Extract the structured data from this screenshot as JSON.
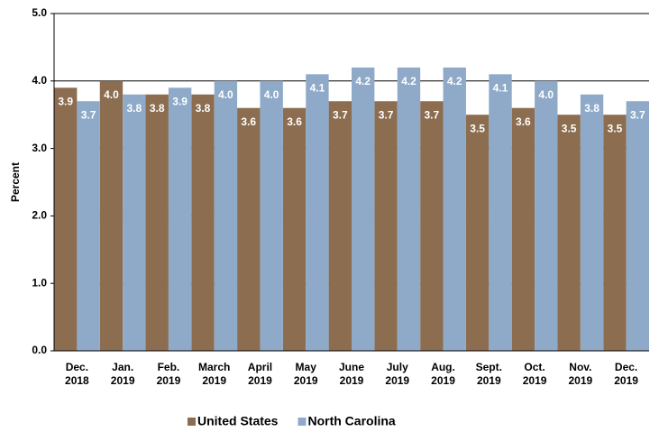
{
  "chart_data": {
    "type": "bar",
    "y_label": "Percent",
    "categories": [
      [
        "Dec.",
        "2018"
      ],
      [
        "Jan.",
        "2019"
      ],
      [
        "Feb.",
        "2019"
      ],
      [
        "March",
        "2019"
      ],
      [
        "April",
        "2019"
      ],
      [
        "May",
        "2019"
      ],
      [
        "June",
        "2019"
      ],
      [
        "July",
        "2019"
      ],
      [
        "Aug.",
        "2019"
      ],
      [
        "Sept.",
        "2019"
      ],
      [
        "Oct.",
        "2019"
      ],
      [
        "Nov.",
        "2019"
      ],
      [
        "Dec.",
        "2019"
      ]
    ],
    "series": [
      {
        "name": "United States",
        "color": "#8c6d4f",
        "values": [
          3.9,
          4.0,
          3.8,
          3.8,
          3.6,
          3.6,
          3.7,
          3.7,
          3.7,
          3.5,
          3.6,
          3.5,
          3.5
        ],
        "value_labels": [
          "3.9",
          "4.0",
          "3.8",
          "3.8",
          "3.6",
          "3.6",
          "3.7",
          "3.7",
          "3.7",
          "3.5",
          "3.6",
          "3.5",
          "3.5"
        ]
      },
      {
        "name": "North Carolina",
        "color": "#8eaac8",
        "values": [
          3.7,
          3.8,
          3.9,
          4.0,
          4.0,
          4.1,
          4.2,
          4.2,
          4.2,
          4.1,
          4.0,
          3.8,
          3.7
        ],
        "value_labels": [
          "3.7",
          "3.8",
          "3.9",
          "4.0",
          "4.0",
          "4.1",
          "4.2",
          "4.2",
          "4.2",
          "4.1",
          "4.0",
          "3.8",
          "3.7"
        ]
      }
    ],
    "ylim": [
      0,
      5
    ],
    "yticks": [
      {
        "value": 0,
        "label": "0.0"
      },
      {
        "value": 1,
        "label": "1.0"
      },
      {
        "value": 2,
        "label": "2.0"
      },
      {
        "value": 3,
        "label": "3.0"
      },
      {
        "value": 4,
        "label": "4.0"
      },
      {
        "value": 5,
        "label": "5.0"
      }
    ],
    "grid": true,
    "legend": "bottom"
  }
}
